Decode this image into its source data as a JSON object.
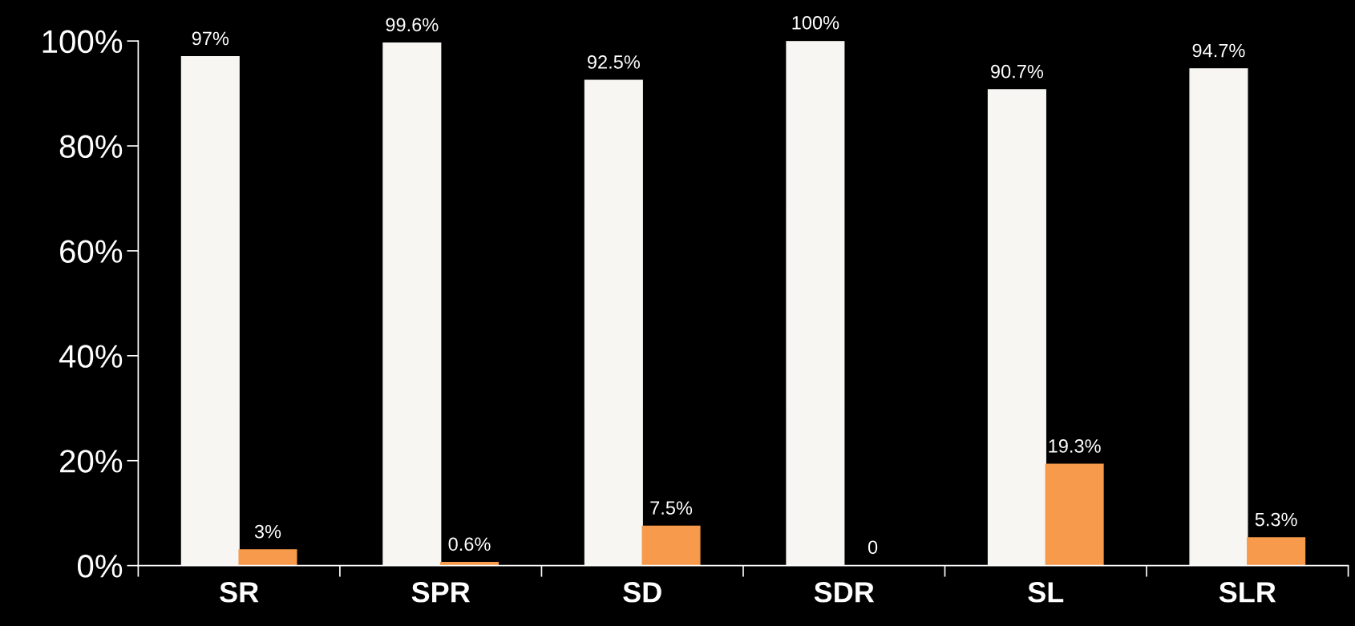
{
  "chart_data": {
    "type": "bar",
    "categories": [
      "SR",
      "SPR",
      "SD",
      "SDR",
      "SL",
      "SLR"
    ],
    "series": [
      {
        "color": "#f7f6f2",
        "values": [
          97,
          99.6,
          92.5,
          100,
          90.7,
          94.7
        ],
        "value_labels": [
          "97%",
          "99.6%",
          "92.5%",
          "100%",
          "90.7%",
          "94.7%"
        ]
      },
      {
        "color": "#f79a4b",
        "values": [
          3,
          0.6,
          7.5,
          0,
          19.3,
          5.3
        ],
        "value_labels": [
          "3%",
          "0.6%",
          "7.5%",
          "0",
          "19.3%",
          "5.3%"
        ]
      }
    ],
    "ylim": [
      0,
      100
    ],
    "yticks": [
      {
        "value": 0,
        "label": "0%"
      },
      {
        "value": 20,
        "label": "20%"
      },
      {
        "value": 40,
        "label": "40%"
      },
      {
        "value": 60,
        "label": "60%"
      },
      {
        "value": 80,
        "label": "80%"
      },
      {
        "value": 100,
        "label": "100%"
      }
    ],
    "grid": false,
    "legend": false
  }
}
